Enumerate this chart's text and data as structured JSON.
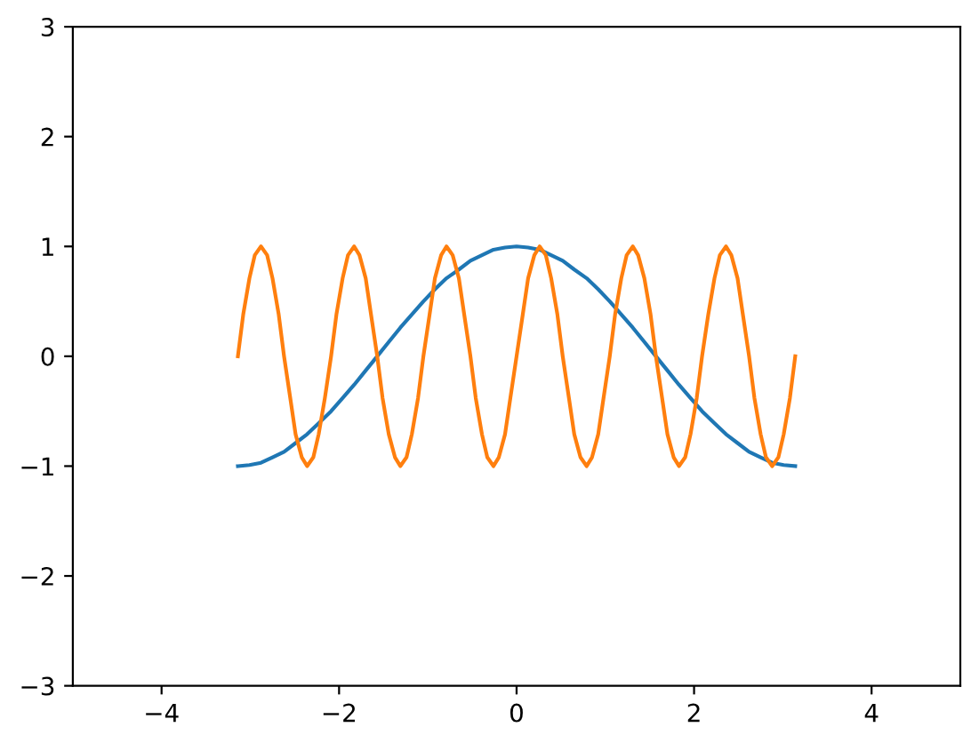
{
  "chart_data": {
    "type": "line",
    "xlim": [
      -5,
      5
    ],
    "ylim": [
      -3,
      3
    ],
    "xticks": [
      -4,
      -2,
      0,
      2,
      4
    ],
    "yticks": [
      -3,
      -2,
      -1,
      0,
      1,
      2,
      3
    ],
    "series": [
      {
        "color": "#1f77b4",
        "x": [
          -3.14,
          -3.01,
          -2.88,
          -2.75,
          -2.62,
          -2.49,
          -2.36,
          -2.23,
          -2.09,
          -1.96,
          -1.83,
          -1.7,
          -1.57,
          -1.44,
          -1.31,
          -1.18,
          -1.05,
          -0.92,
          -0.79,
          -0.65,
          -0.52,
          -0.39,
          -0.26,
          -0.13,
          0,
          0.13,
          0.26,
          0.39,
          0.52,
          0.65,
          0.79,
          0.92,
          1.05,
          1.18,
          1.31,
          1.44,
          1.57,
          1.7,
          1.83,
          1.96,
          2.09,
          2.23,
          2.36,
          2.49,
          2.62,
          2.75,
          2.88,
          3.01,
          3.14
        ],
        "values": [
          -1,
          -0.99,
          -0.97,
          -0.92,
          -0.87,
          -0.79,
          -0.71,
          -0.61,
          -0.5,
          -0.38,
          -0.26,
          -0.13,
          0,
          0.13,
          0.26,
          0.38,
          0.5,
          0.61,
          0.71,
          0.79,
          0.87,
          0.92,
          0.97,
          0.99,
          1,
          0.99,
          0.97,
          0.92,
          0.87,
          0.79,
          0.71,
          0.61,
          0.5,
          0.38,
          0.26,
          0.13,
          0,
          -0.13,
          -0.26,
          -0.38,
          -0.5,
          -0.61,
          -0.71,
          -0.79,
          -0.87,
          -0.92,
          -0.97,
          -0.99,
          -1
        ]
      },
      {
        "color": "#ff7f0e",
        "x": [
          -3.14,
          -3.08,
          -3.01,
          -2.95,
          -2.88,
          -2.81,
          -2.75,
          -2.68,
          -2.62,
          -2.55,
          -2.49,
          -2.42,
          -2.36,
          -2.29,
          -2.23,
          -2.16,
          -2.09,
          -2.03,
          -1.96,
          -1.9,
          -1.83,
          -1.77,
          -1.7,
          -1.64,
          -1.57,
          -1.51,
          -1.44,
          -1.37,
          -1.31,
          -1.24,
          -1.18,
          -1.11,
          -1.05,
          -0.98,
          -0.92,
          -0.85,
          -0.79,
          -0.72,
          -0.65,
          -0.59,
          -0.52,
          -0.46,
          -0.39,
          -0.33,
          -0.26,
          -0.2,
          -0.13,
          -0.07,
          0,
          0.07,
          0.13,
          0.2,
          0.26,
          0.33,
          0.39,
          0.46,
          0.52,
          0.59,
          0.65,
          0.72,
          0.79,
          0.85,
          0.92,
          0.98,
          1.05,
          1.11,
          1.18,
          1.24,
          1.31,
          1.37,
          1.44,
          1.51,
          1.57,
          1.64,
          1.7,
          1.77,
          1.83,
          1.9,
          1.96,
          2.03,
          2.09,
          2.16,
          2.23,
          2.29,
          2.36,
          2.42,
          2.49,
          2.55,
          2.62,
          2.68,
          2.75,
          2.81,
          2.88,
          2.95,
          3.01,
          3.08,
          3.14
        ],
        "values": [
          0,
          0.38,
          0.71,
          0.92,
          1,
          0.92,
          0.71,
          0.38,
          0,
          -0.38,
          -0.71,
          -0.92,
          -1,
          -0.92,
          -0.71,
          -0.38,
          0,
          0.38,
          0.71,
          0.92,
          1,
          0.92,
          0.71,
          0.38,
          0,
          -0.38,
          -0.71,
          -0.92,
          -1,
          -0.92,
          -0.71,
          -0.38,
          0,
          0.38,
          0.71,
          0.92,
          1,
          0.92,
          0.71,
          0.38,
          0,
          -0.38,
          -0.71,
          -0.92,
          -1,
          -0.92,
          -0.71,
          -0.38,
          0,
          0.38,
          0.71,
          0.92,
          1,
          0.92,
          0.71,
          0.38,
          0,
          -0.38,
          -0.71,
          -0.92,
          -1,
          -0.92,
          -0.71,
          -0.38,
          0,
          0.38,
          0.71,
          0.92,
          1,
          0.92,
          0.71,
          0.38,
          0,
          -0.38,
          -0.71,
          -0.92,
          -1,
          -0.92,
          -0.71,
          -0.38,
          0,
          0.38,
          0.71,
          0.92,
          1,
          0.92,
          0.71,
          0.38,
          0,
          -0.38,
          -0.71,
          -0.92,
          -1,
          -0.92,
          -0.71,
          -0.38,
          0
        ]
      }
    ]
  }
}
